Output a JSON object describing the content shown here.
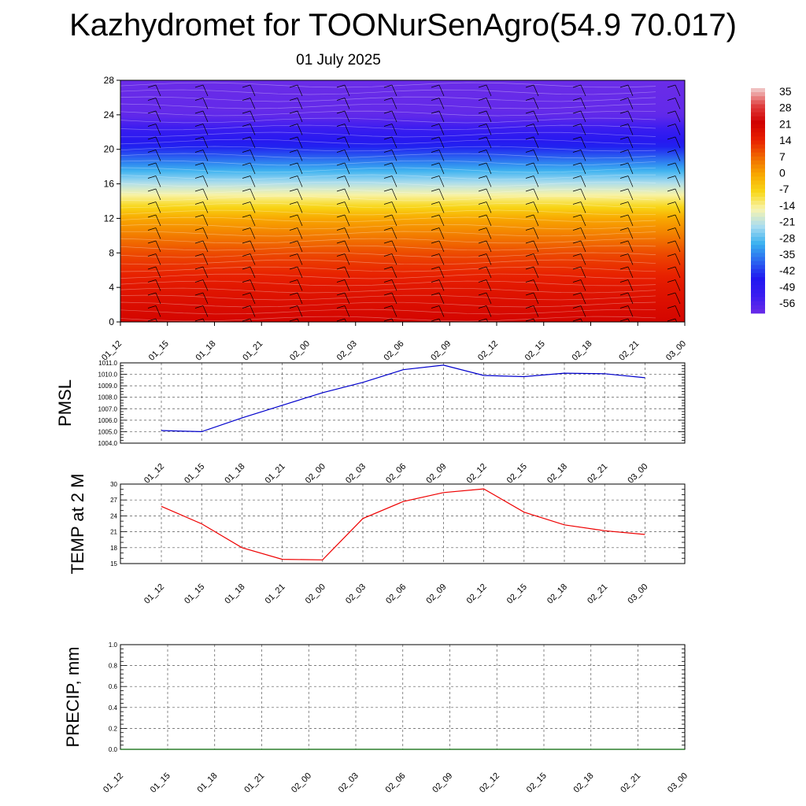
{
  "header": {
    "title": "Kazhydromet for TOONurSenAgro(54.9 70.017)",
    "subtitle": "01 July 2025"
  },
  "chart_data": [
    {
      "type": "heatmap",
      "title": "",
      "ylim": [
        0,
        28
      ],
      "yticks": [
        "0",
        "4",
        "8",
        "12",
        "16",
        "20",
        "24",
        "28"
      ],
      "categories": [
        "01_12",
        "01_15",
        "01_18",
        "01_21",
        "02_00",
        "02_03",
        "02_06",
        "02_09",
        "02_12",
        "02_15",
        "02_18",
        "02_21",
        "03_00"
      ],
      "colorbar": {
        "labels": [
          "35",
          "28",
          "21",
          "14",
          "7",
          "0",
          "-7",
          "-14",
          "-21",
          "-28",
          "-35",
          "-42",
          "-49",
          "-56"
        ],
        "colors": [
          "#f2d0d0",
          "#e04040",
          "#d00000",
          "#e82000",
          "#f06a00",
          "#f8a800",
          "#f8d818",
          "#f8f4b0",
          "#a8dcf0",
          "#38b0f0",
          "#2a66f0",
          "#2018f0",
          "#3a1cf0",
          "#6a2ce8"
        ]
      },
      "temperature_profile_by_level": [
        20,
        16,
        10,
        0,
        -20,
        -40,
        -55,
        -56
      ],
      "overlay": "wind barbs",
      "grid": false
    },
    {
      "type": "line",
      "ylabel": "PMSL",
      "ylim": [
        1004.0,
        1011.0
      ],
      "yticks": [
        "1004.0",
        "1005.0",
        "1006.0",
        "1007.0",
        "1008.0",
        "1009.0",
        "1010.0",
        "1011.0"
      ],
      "categories": [
        "01_12",
        "01_15",
        "01_18",
        "01_21",
        "02_00",
        "02_03",
        "02_06",
        "02_09",
        "02_12",
        "02_15",
        "02_18",
        "02_21",
        "03_00"
      ],
      "values": [
        1005.1,
        1005.0,
        1006.2,
        1007.3,
        1008.4,
        1009.3,
        1010.4,
        1010.8,
        1009.9,
        1009.8,
        1010.1,
        1010.05,
        1009.7
      ],
      "color": "#0000cc",
      "grid": true
    },
    {
      "type": "line",
      "ylabel": "TEMP at 2 M",
      "ylim": [
        15,
        30
      ],
      "yticks": [
        "15",
        "18",
        "21",
        "24",
        "27",
        "30"
      ],
      "categories": [
        "01_12",
        "01_15",
        "01_18",
        "01_21",
        "02_00",
        "02_03",
        "02_06",
        "02_09",
        "02_12",
        "02_15",
        "02_18",
        "02_21",
        "03_00"
      ],
      "values": [
        25.8,
        22.5,
        18.0,
        15.8,
        15.7,
        23.5,
        26.7,
        28.4,
        29.1,
        24.7,
        22.3,
        21.2,
        20.5
      ],
      "color": "#ee0000",
      "grid": true
    },
    {
      "type": "line",
      "ylabel": "PRECIP, mm",
      "ylim": [
        0.0,
        1.0
      ],
      "yticks": [
        "0.0",
        "0.2",
        "0.4",
        "0.6",
        "0.8",
        "1.0"
      ],
      "categories": [
        "01_12",
        "01_15",
        "01_18",
        "01_21",
        "02_00",
        "02_03",
        "02_06",
        "02_09",
        "02_12",
        "02_15",
        "02_18",
        "02_21",
        "03_00"
      ],
      "values": [
        0,
        0,
        0,
        0,
        0,
        0,
        0,
        0,
        0,
        0,
        0,
        0,
        0
      ],
      "color": "#006400",
      "grid": true
    }
  ]
}
